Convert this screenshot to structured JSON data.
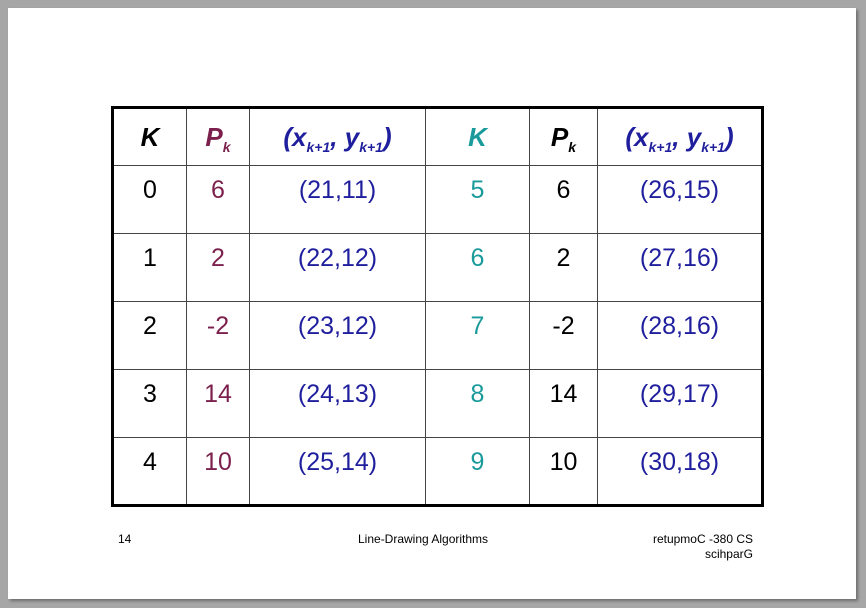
{
  "table": {
    "headers": [
      {
        "main": "K"
      },
      {
        "main": "P",
        "sub": "k"
      },
      {
        "main": "(x",
        "sub1": "k+1",
        "mid": ", y",
        "sub2": "k+1",
        "end": ")"
      },
      {
        "main": "K"
      },
      {
        "main": "P",
        "sub": "k"
      },
      {
        "main": "(x",
        "sub1": "k+1",
        "mid": ", y",
        "sub2": "k+1",
        "end": ")"
      }
    ],
    "rows": [
      [
        "0",
        "6",
        "(21,11)",
        "5",
        "6",
        "(26,15)"
      ],
      [
        "1",
        "2",
        "(22,12)",
        "6",
        "2",
        "(27,16)"
      ],
      [
        "2",
        "-2",
        "(23,12)",
        "7",
        "-2",
        "(28,16)"
      ],
      [
        "3",
        "14",
        "(24,13)",
        "8",
        "14",
        "(29,17)"
      ],
      [
        "4",
        "10",
        "(25,14)",
        "9",
        "10",
        "(30,18)"
      ]
    ]
  },
  "footer": {
    "page_number": "14",
    "title": "Line-Drawing Algorithms",
    "course_line1": "retupmoC -380 CS",
    "course_line2": "scihparG"
  },
  "colors": {
    "k_column": "#000000",
    "pk_column": "#7b1f4c",
    "coord_column": "#1f1f9e",
    "k2_column": "#1a9a9a"
  }
}
